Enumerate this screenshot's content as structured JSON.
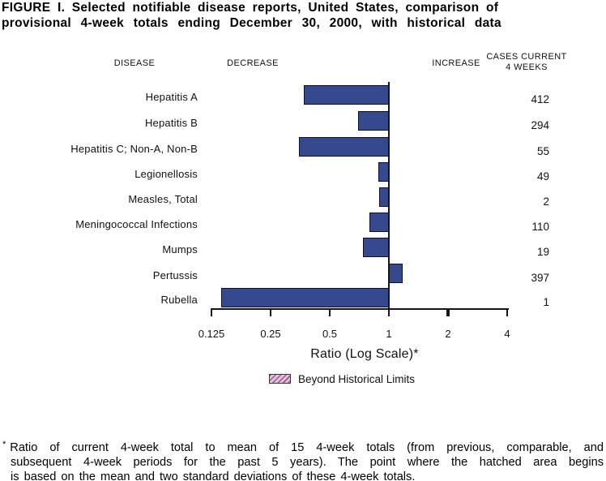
{
  "title": {
    "line1": "FIGURE I.  Selected notifiable disease reports, United States, comparison of",
    "line2": "provisional 4-week totals ending December 30, 2000, with historical data"
  },
  "chart_data": {
    "type": "bar",
    "orientation": "horizontal",
    "x_scale": "log2",
    "xlim": [
      0.125,
      4
    ],
    "xlabel": "Ratio (Log Scale)*",
    "headers": {
      "disease": "DISEASE",
      "decrease": "DECREASE",
      "increase": "INCREASE",
      "cases_line1": "CASES CURRENT",
      "cases_line2": "4 WEEKS"
    },
    "x_ticks": [
      {
        "value": 0.125,
        "label": "0.125"
      },
      {
        "value": 0.25,
        "label": "0.25"
      },
      {
        "value": 0.5,
        "label": "0.5"
      },
      {
        "value": 1,
        "label": "1"
      },
      {
        "value": 2,
        "label": "2",
        "bold": true
      },
      {
        "value": 4,
        "label": "4"
      }
    ],
    "rows": [
      {
        "disease": "Hepatitis A",
        "ratio": 0.37,
        "cases": "412"
      },
      {
        "disease": "Hepatitis B",
        "ratio": 0.7,
        "cases": "294"
      },
      {
        "disease": "Hepatitis C; Non-A, Non-B",
        "ratio": 0.35,
        "cases": "55"
      },
      {
        "disease": "Legionellosis",
        "ratio": 0.88,
        "cases": "49"
      },
      {
        "disease": "Measles, Total",
        "ratio": 0.89,
        "cases": "2"
      },
      {
        "disease": "Meningococcal Infections",
        "ratio": 0.8,
        "cases": "110"
      },
      {
        "disease": "Mumps",
        "ratio": 0.74,
        "cases": "19"
      },
      {
        "disease": "Pertussis",
        "ratio": 1.18,
        "cases": "397"
      },
      {
        "disease": "Rubella",
        "ratio": 0.14,
        "cases": "1"
      }
    ],
    "legend": {
      "swatch": "hatched-pink",
      "label": "Beyond Historical Limits"
    },
    "colors": {
      "bar_fill": "#35498c",
      "bar_border": "#0d1130",
      "axis": "#15151c"
    }
  },
  "footnote": {
    "marker": "*",
    "lines": [
      "Ratio of current 4-week total to mean of 15 4-week totals (from previous, comparable, and",
      "subsequent 4-week periods for the past 5 years). The point where the hatched area begins",
      "is based on the mean and two standard deviations of these 4-week totals."
    ]
  }
}
